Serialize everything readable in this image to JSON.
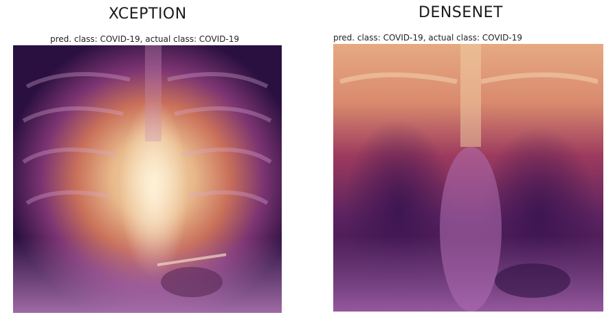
{
  "panels": [
    {
      "model": "XCEPTION",
      "caption": "pred. class: COVID-19, actual class: COVID-19",
      "colors": {
        "dark": "#2a1040",
        "mid": "#8a3a7a",
        "hot": "#e8b88a",
        "peak": "#f6dcb4"
      }
    },
    {
      "model": "DENSENET",
      "caption": "pred. class: COVID-19, actual class: COVID-19",
      "colors": {
        "dark": "#2a1040",
        "mid": "#9a3a5e",
        "hot": "#e3a27a",
        "peak": "#f0d0a8"
      }
    }
  ]
}
